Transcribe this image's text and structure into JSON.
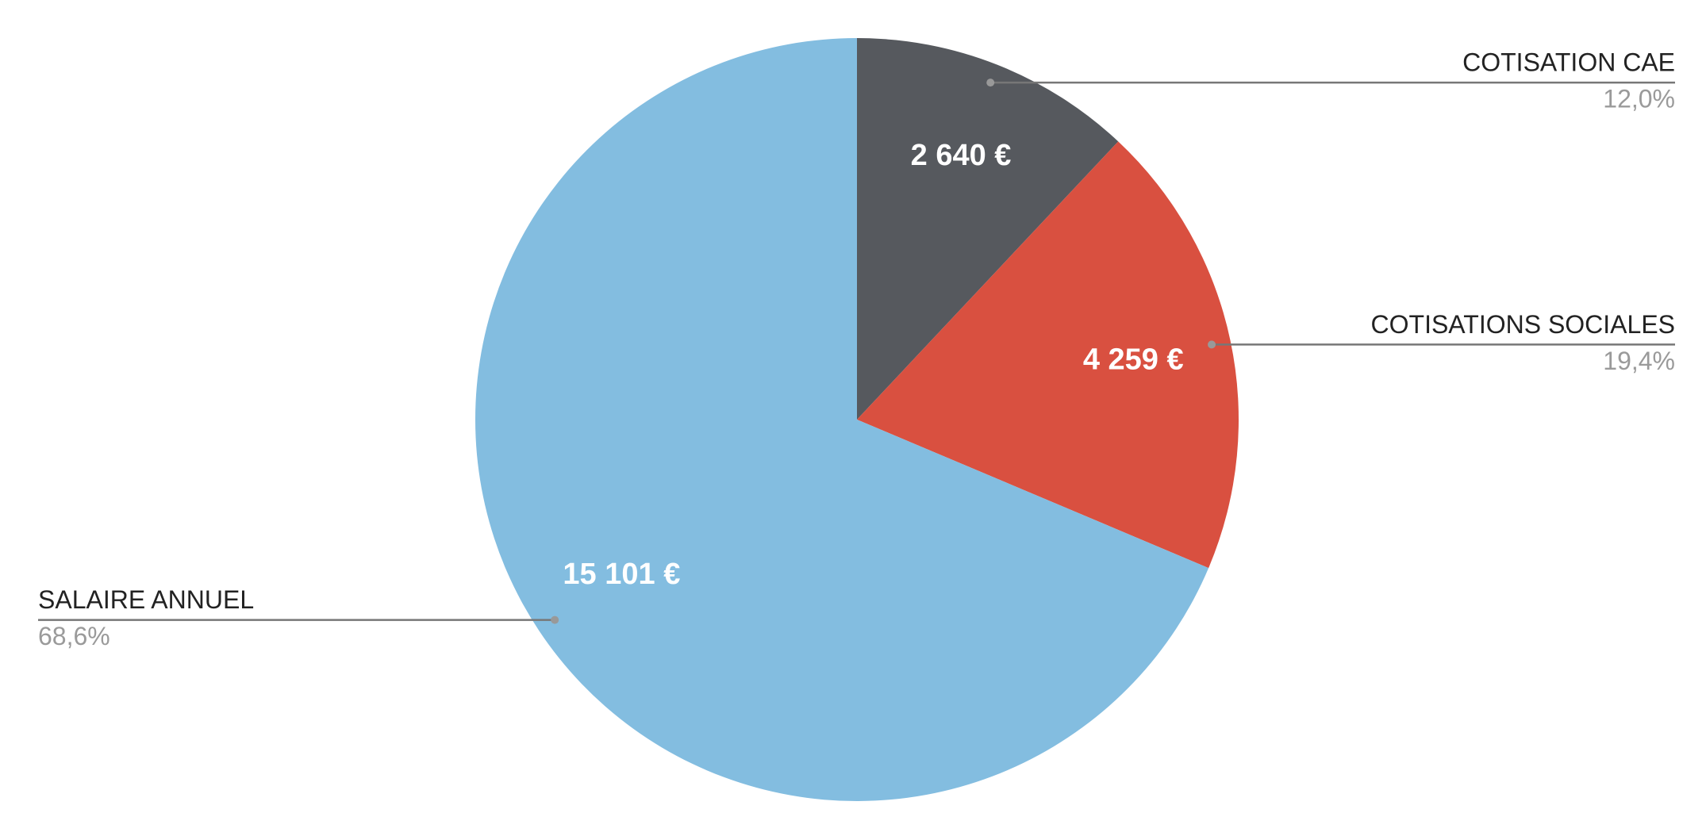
{
  "chart_data": {
    "type": "pie",
    "categories": [
      "COTISATION CAE",
      "COTISATIONS SOCIALES",
      "SALAIRE ANNUEL"
    ],
    "values": [
      2640,
      4259,
      15101
    ],
    "value_labels": [
      "2 640 €",
      "4 259 €",
      "15 101 €"
    ],
    "percentages": [
      12.0,
      19.4,
      68.6
    ],
    "percentage_labels": [
      "12,0%",
      "19,4%",
      "68,6%"
    ],
    "colors": [
      "#56595e",
      "#d95040",
      "#83bde0"
    ]
  }
}
